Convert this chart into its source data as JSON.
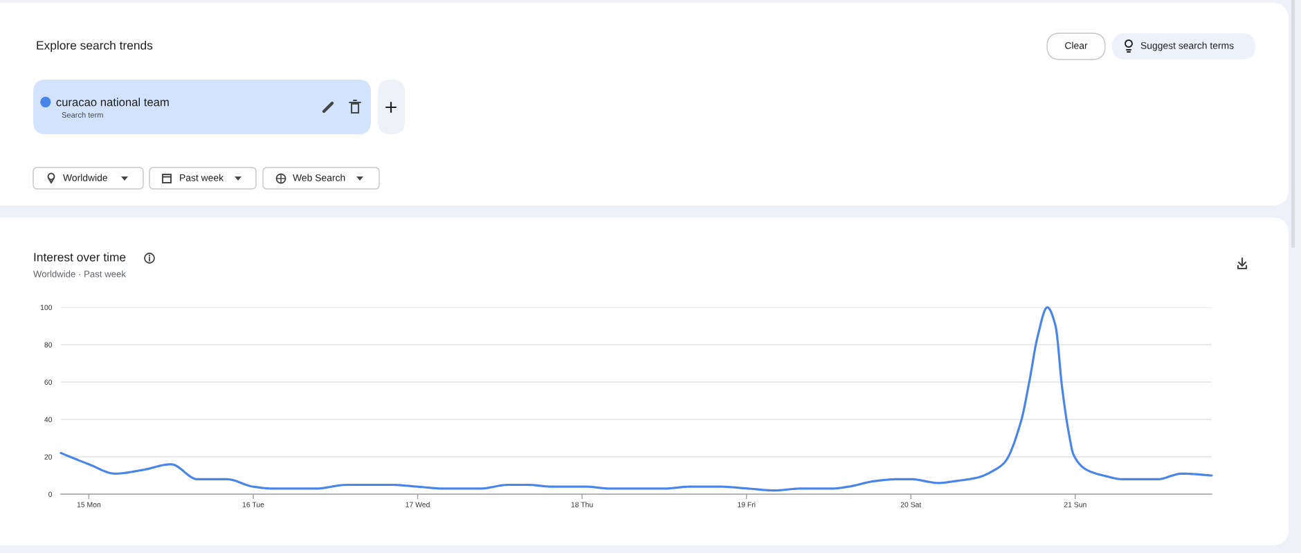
{
  "chart_data": {
    "type": "line",
    "title": "Interest over time",
    "subtitle": "Worldwide · Past week",
    "annotations": [
      "Explore search trends",
      "Clear",
      "Suggest search terms",
      "Search term",
      "Worldwide",
      "Past week",
      "Web Search"
    ],
    "x": [
      14.83,
      15.0,
      15.16,
      15.33,
      15.5,
      15.66,
      15.84,
      16.0,
      16.12,
      16.38,
      16.57,
      16.84,
      17.0,
      17.16,
      17.38,
      17.55,
      17.67,
      17.82,
      18.03,
      18.17,
      18.5,
      18.65,
      18.84,
      19.01,
      19.17,
      19.33,
      19.52,
      19.62,
      19.78,
      19.92,
      20.0,
      20.17,
      20.27,
      20.41,
      20.51,
      20.57,
      20.67,
      20.72,
      20.77,
      20.83,
      20.88,
      20.92,
      20.96,
      20.99,
      21.07,
      21.17,
      21.29,
      21.5,
      21.65,
      21.83
    ],
    "series": [
      {
        "name": "curacao national team",
        "color": "#4a86e8",
        "values": [
          22,
          16,
          11,
          13,
          16,
          8,
          8,
          4,
          3,
          3,
          5,
          5,
          4,
          3,
          3,
          5,
          5,
          4,
          4,
          3,
          3,
          4,
          4,
          3,
          2,
          3,
          3,
          4,
          7,
          8,
          8,
          6,
          7,
          9,
          13,
          17,
          39,
          60,
          84,
          100,
          90,
          57,
          33,
          21,
          13,
          10,
          8,
          8,
          11,
          10
        ]
      }
    ],
    "xlim": [
      14.83,
      21.83
    ],
    "xticks": [
      {
        "value": 15,
        "label": "15 Mon"
      },
      {
        "value": 16,
        "label": "16 Tue"
      },
      {
        "value": 17,
        "label": "17 Wed"
      },
      {
        "value": 18,
        "label": "18 Thu"
      },
      {
        "value": 19,
        "label": "19 Fri"
      },
      {
        "value": 20,
        "label": "20 Sat"
      },
      {
        "value": 21,
        "label": "21 Sun"
      }
    ],
    "ylim": [
      0,
      100
    ],
    "yticks": [
      0,
      20,
      40,
      60,
      80,
      100
    ],
    "grid": "y",
    "legend": "top left"
  }
}
